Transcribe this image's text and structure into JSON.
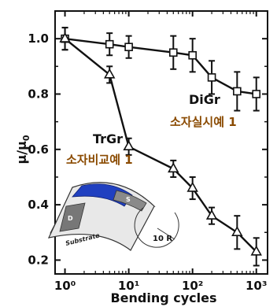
{
  "chart_data": {
    "type": "line",
    "xscale": "log",
    "xlabel": "Bending cycles",
    "ylabel": "μ/μ0",
    "xlim": [
      0.7,
      1500
    ],
    "ylim": [
      0.15,
      1.1
    ],
    "xticks": [
      1,
      10,
      100,
      1000
    ],
    "xtick_labels": [
      "10⁰",
      "10¹",
      "10²",
      "10³"
    ],
    "yticks": [
      0.2,
      0.4,
      0.6,
      0.8,
      1.0
    ],
    "ytick_labels": [
      "0.2",
      "0.4",
      "0.6",
      "0.8",
      "1.0"
    ],
    "series": [
      {
        "marker": "square",
        "x": [
          1,
          5,
          10,
          50,
          100,
          200,
          500,
          1000
        ],
        "y": [
          1.0,
          0.98,
          0.97,
          0.95,
          0.94,
          0.86,
          0.81,
          0.8
        ],
        "err": [
          0.04,
          0.04,
          0.04,
          0.06,
          0.06,
          0.06,
          0.07,
          0.06
        ]
      },
      {
        "marker": "triangle",
        "x": [
          1,
          5,
          10,
          50,
          100,
          200,
          500,
          1000
        ],
        "y": [
          1.0,
          0.87,
          0.61,
          0.53,
          0.46,
          0.36,
          0.3,
          0.23
        ],
        "err": [
          0.04,
          0.03,
          0.03,
          0.03,
          0.04,
          0.03,
          0.06,
          0.05
        ]
      }
    ],
    "annotations": [
      {
        "text": "DiGr"
      },
      {
        "text": "소자실시예 1"
      },
      {
        "text": "TrGr"
      },
      {
        "text": "소자비교예 1"
      }
    ],
    "inset": {
      "labels": [
        "S",
        "D",
        "Substrate",
        "10 R"
      ],
      "colors": {
        "active": "#2040c0",
        "electrode": "#777777",
        "substrate": "#e8e8e8"
      }
    }
  }
}
